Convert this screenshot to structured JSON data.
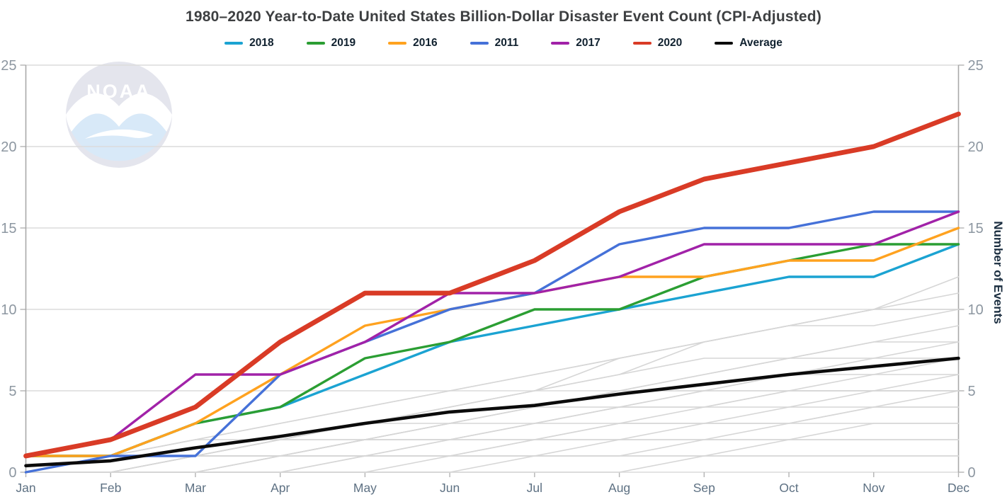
{
  "title": "1980–2020 Year-to-Date United States Billion-Dollar Disaster Event Count (CPI-Adjusted)",
  "watermark": {
    "text": "NOAA"
  },
  "y_axis": {
    "label": "Number of Events",
    "ticks": [
      0,
      5,
      10,
      15,
      20,
      25
    ],
    "max": 25
  },
  "x_axis": {
    "months": [
      "Jan",
      "Feb",
      "Mar",
      "Apr",
      "May",
      "Jun",
      "Jul",
      "Aug",
      "Sep",
      "Oct",
      "Nov",
      "Dec"
    ]
  },
  "chart_data": {
    "type": "line",
    "title": "1980–2020 Year-to-Date United States Billion-Dollar Disaster Event Count (CPI-Adjusted)",
    "xlabel": "",
    "ylabel": "Number of Events",
    "ylim": [
      0,
      25
    ],
    "grid": true,
    "legend_position": "top",
    "categories": [
      "Jan",
      "Feb",
      "Mar",
      "Apr",
      "May",
      "Jun",
      "Jul",
      "Aug",
      "Sep",
      "Oct",
      "Nov",
      "Dec"
    ],
    "series": [
      {
        "name": "2018",
        "color": "#1ba3d2",
        "width": 3.4,
        "values": [
          1,
          1,
          3,
          4,
          6,
          8,
          9,
          10,
          11,
          12,
          12,
          14
        ]
      },
      {
        "name": "2019",
        "color": "#2b9e33",
        "width": 3.4,
        "values": [
          1,
          1,
          3,
          4,
          7,
          8,
          10,
          10,
          12,
          13,
          14,
          14
        ]
      },
      {
        "name": "2016",
        "color": "#ffa21f",
        "width": 3.4,
        "values": [
          1,
          1,
          3,
          6,
          9,
          10,
          11,
          12,
          12,
          13,
          13,
          15
        ]
      },
      {
        "name": "2011",
        "color": "#4571d8",
        "width": 3.4,
        "values": [
          0,
          1,
          1,
          6,
          8,
          10,
          11,
          14,
          15,
          15,
          16,
          16
        ]
      },
      {
        "name": "2017",
        "color": "#a122a8",
        "width": 3.4,
        "values": [
          1,
          2,
          6,
          6,
          8,
          11,
          11,
          12,
          14,
          14,
          14,
          16
        ]
      },
      {
        "name": "2020",
        "color": "#d93b26",
        "width": 6.8,
        "values": [
          1,
          2,
          4,
          8,
          11,
          11,
          13,
          16,
          18,
          19,
          20,
          22
        ]
      },
      {
        "name": "Average",
        "color": "#0b0b0b",
        "width": 4.6,
        "values": [
          0.4,
          0.7,
          1.5,
          2.2,
          3.0,
          3.7,
          4.1,
          4.8,
          5.4,
          6.0,
          6.5,
          7.0
        ]
      }
    ],
    "background_years_color": "#d6d6d6",
    "background_years": [
      [
        0,
        1,
        1,
        2,
        3,
        4,
        5,
        6,
        8,
        9,
        10,
        12
      ],
      [
        0,
        0,
        1,
        2,
        3,
        4,
        5,
        7,
        8,
        9,
        10,
        11
      ],
      [
        1,
        1,
        2,
        3,
        4,
        5,
        6,
        7,
        8,
        9,
        10,
        10
      ],
      [
        0,
        1,
        2,
        3,
        4,
        5,
        6,
        7,
        8,
        9,
        9,
        10
      ],
      [
        0,
        0,
        1,
        1,
        2,
        3,
        4,
        5,
        6,
        7,
        8,
        9
      ],
      [
        1,
        1,
        1,
        2,
        3,
        4,
        5,
        6,
        7,
        7,
        8,
        8
      ],
      [
        0,
        1,
        1,
        2,
        2,
        3,
        4,
        5,
        6,
        7,
        7,
        8
      ],
      [
        0,
        0,
        1,
        1,
        2,
        3,
        4,
        4,
        5,
        6,
        7,
        7
      ],
      [
        1,
        1,
        2,
        2,
        3,
        3,
        4,
        5,
        5,
        6,
        6,
        7
      ],
      [
        0,
        0,
        0,
        1,
        1,
        2,
        3,
        4,
        5,
        5,
        6,
        6
      ],
      [
        0,
        1,
        1,
        1,
        2,
        2,
        3,
        4,
        4,
        5,
        5,
        6
      ],
      [
        0,
        0,
        1,
        1,
        2,
        2,
        3,
        3,
        4,
        4,
        5,
        5
      ],
      [
        1,
        1,
        1,
        2,
        2,
        3,
        3,
        4,
        4,
        5,
        5,
        5
      ],
      [
        0,
        0,
        0,
        1,
        1,
        1,
        2,
        2,
        3,
        3,
        4,
        5
      ],
      [
        0,
        0,
        1,
        1,
        1,
        2,
        2,
        3,
        3,
        4,
        4,
        4
      ],
      [
        0,
        1,
        1,
        1,
        2,
        2,
        2,
        3,
        3,
        3,
        4,
        4
      ],
      [
        0,
        0,
        0,
        0,
        1,
        1,
        2,
        2,
        2,
        3,
        3,
        3
      ],
      [
        0,
        0,
        0,
        1,
        1,
        1,
        1,
        2,
        2,
        2,
        3,
        3
      ],
      [
        0,
        0,
        0,
        0,
        0,
        1,
        1,
        1,
        2,
        2,
        2,
        2
      ],
      [
        0,
        0,
        0,
        0,
        1,
        1,
        1,
        1,
        1,
        2,
        2,
        2
      ],
      [
        0,
        0,
        0,
        0,
        0,
        0,
        1,
        1,
        1,
        1,
        1,
        1
      ],
      [
        0,
        0,
        0,
        0,
        0,
        0,
        0,
        0,
        1,
        1,
        1,
        1
      ]
    ]
  }
}
